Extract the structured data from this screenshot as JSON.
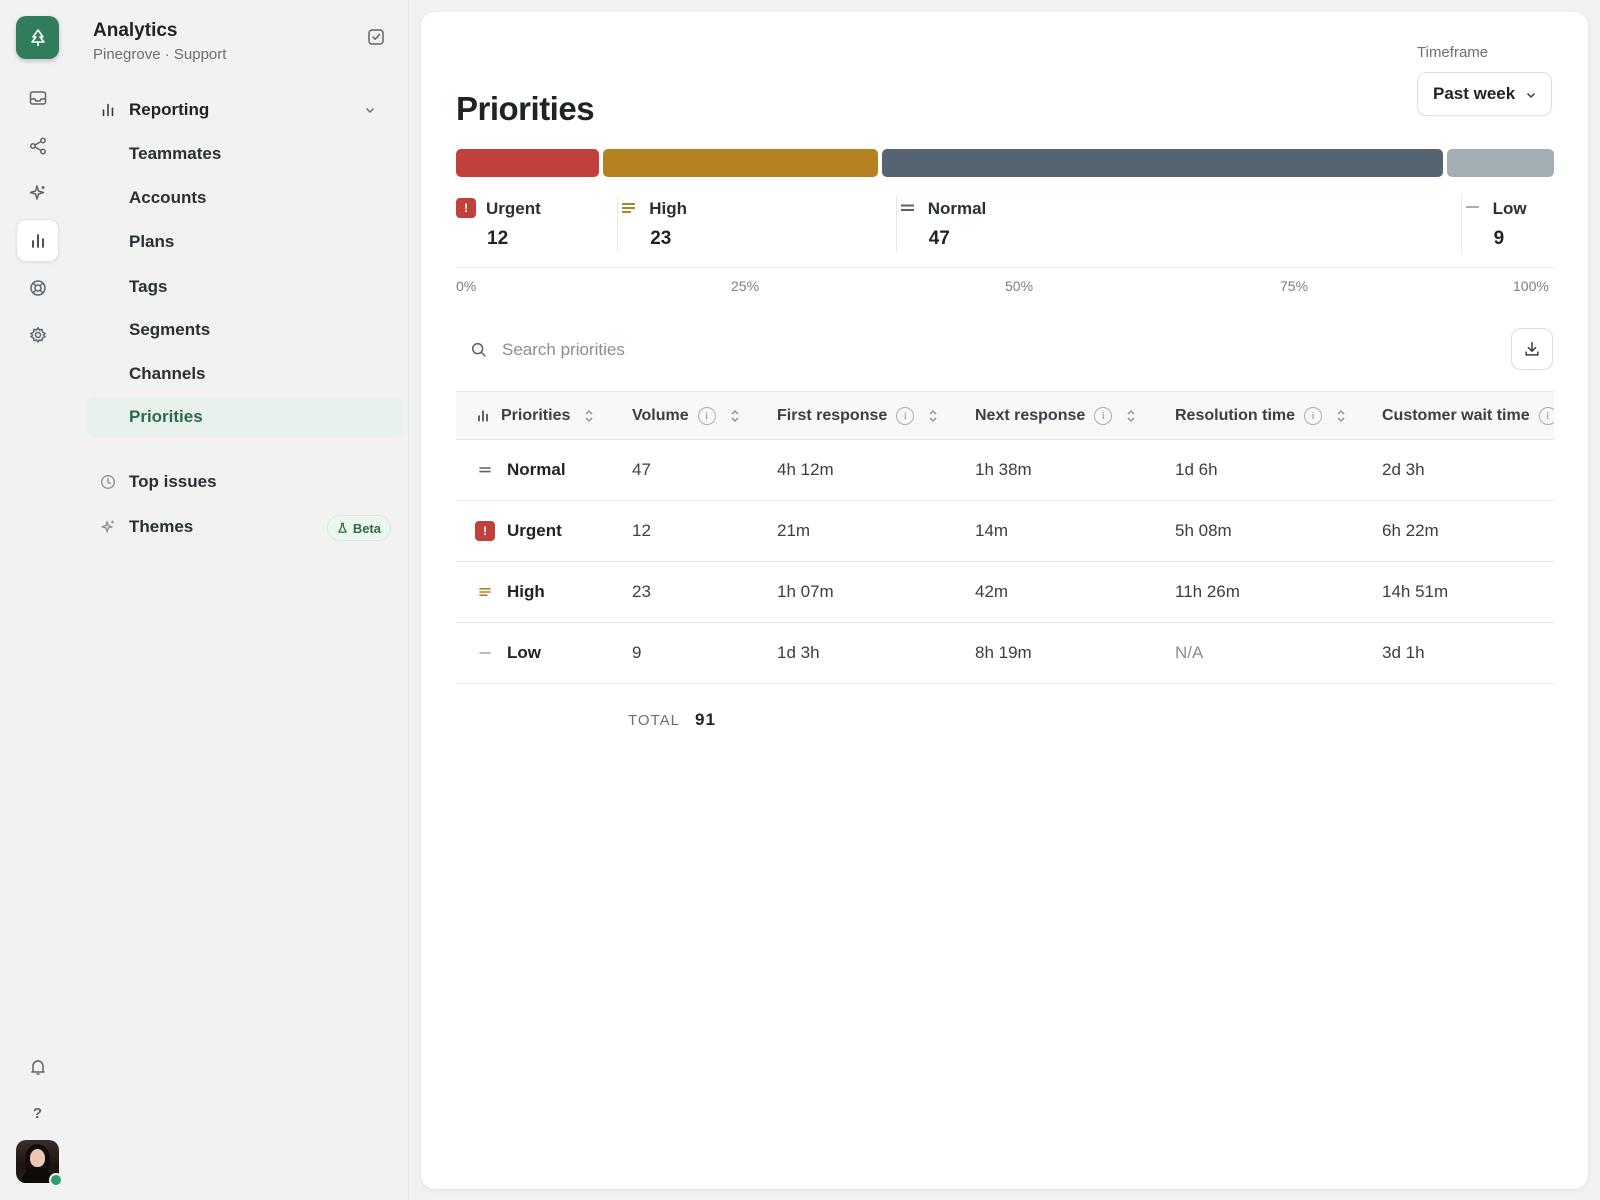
{
  "workspace": {
    "title": "Analytics",
    "subtitle": "Pinegrove · Support"
  },
  "rail": {
    "logo_icon": "tree-icon",
    "items": [
      {
        "name": "inbox-icon"
      },
      {
        "name": "share-icon"
      },
      {
        "name": "sparkle-icon"
      },
      {
        "name": "bar-chart-icon",
        "active": true
      },
      {
        "name": "lifebuoy-icon"
      },
      {
        "name": "settings-icon"
      }
    ],
    "bottom": [
      {
        "name": "bell-icon"
      },
      {
        "name": "help-icon",
        "glyph": "?"
      }
    ]
  },
  "sidebar": {
    "group": {
      "label": "Reporting",
      "icon": "bar-chart-icon"
    },
    "items": [
      {
        "label": "Teammates"
      },
      {
        "label": "Accounts"
      },
      {
        "label": "Plans"
      },
      {
        "label": "Tags"
      },
      {
        "label": "Segments"
      },
      {
        "label": "Channels"
      },
      {
        "label": "Priorities",
        "active": true
      }
    ],
    "extra": [
      {
        "label": "Top issues",
        "icon": "clock-icon"
      },
      {
        "label": "Themes",
        "icon": "sparkle-icon",
        "badge": "Beta"
      }
    ]
  },
  "page": {
    "title": "Priorities",
    "timeframe": {
      "label": "Timeframe",
      "value": "Past week"
    }
  },
  "distribution": {
    "segments": [
      {
        "label": "Urgent",
        "count": "12",
        "value": 12,
        "color": "#c0413b"
      },
      {
        "label": "High",
        "count": "23",
        "value": 23,
        "color": "#b58020"
      },
      {
        "label": "Normal",
        "count": "47",
        "value": 47,
        "color": "#566371"
      },
      {
        "label": "Low",
        "count": "9",
        "value": 9,
        "color": "#a3adb4"
      }
    ],
    "ticks": [
      "0%",
      "25%",
      "50%",
      "75%",
      "100%"
    ]
  },
  "search": {
    "placeholder": "Search priorities"
  },
  "table": {
    "columns": [
      {
        "label": "Priorities"
      },
      {
        "label": "Volume"
      },
      {
        "label": "First response"
      },
      {
        "label": "Next response"
      },
      {
        "label": "Resolution time"
      },
      {
        "label": "Customer wait time"
      }
    ],
    "rows": [
      {
        "priority": "Normal",
        "volume": "47",
        "first_response": "4h 12m",
        "next_response": "1h 38m",
        "resolution_time": "1d 6h",
        "customer_wait_time": "2d 3h"
      },
      {
        "priority": "Urgent",
        "volume": "12",
        "first_response": "21m",
        "next_response": "14m",
        "resolution_time": "5h 08m",
        "customer_wait_time": "6h 22m"
      },
      {
        "priority": "High",
        "volume": "23",
        "first_response": "1h 07m",
        "next_response": "42m",
        "resolution_time": "11h 26m",
        "customer_wait_time": "14h 51m"
      },
      {
        "priority": "Low",
        "volume": "9",
        "first_response": "1d 3h",
        "next_response": "8h 19m",
        "resolution_time": "N/A",
        "customer_wait_time": "3d 1h"
      }
    ],
    "total_label": "TOTAL",
    "total_value": "91"
  },
  "colors": {
    "accent": "#2f7d5a",
    "urgent": "#c0413b",
    "high": "#b58020",
    "normal": "#566371",
    "low": "#a3adb4"
  }
}
